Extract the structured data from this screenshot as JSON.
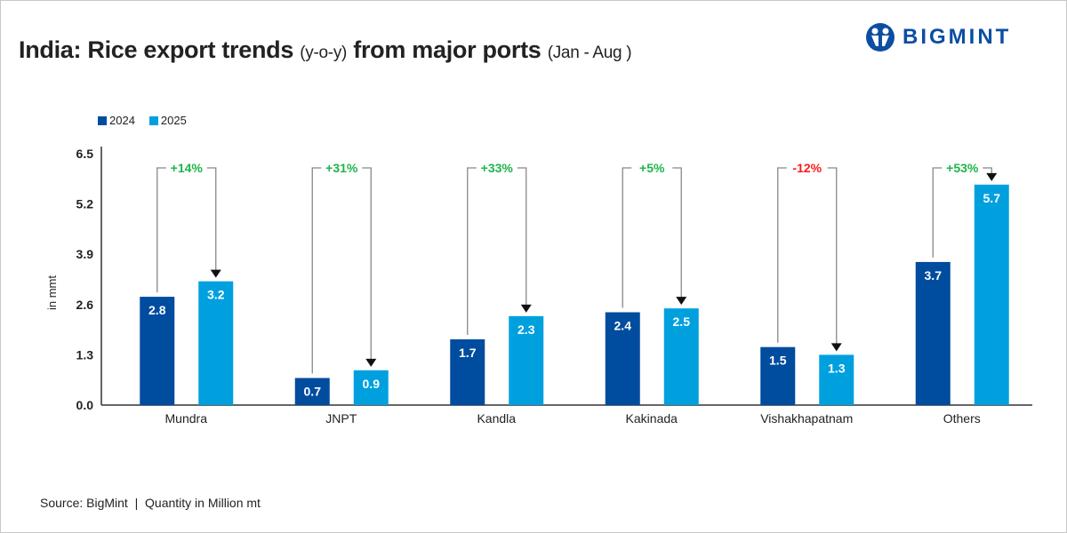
{
  "title": {
    "main1": "India: Rice export trends ",
    "paren1": "(y-o-y)",
    "main2": " from major ports ",
    "paren2": "(Jan - Aug )"
  },
  "logo": {
    "text": "BIGMINT"
  },
  "source": "Source: BigMint  |  Quantity in Million mt",
  "colors": {
    "2024": "#004c9e",
    "2025": "#00a0df",
    "positive": "#1db54a",
    "negative": "#ff1a1a"
  },
  "chart_data": {
    "type": "bar",
    "categories": [
      "Mundra",
      "JNPT",
      "Kandla",
      "Kakinada",
      "Vishakhapatnam",
      "Others"
    ],
    "series": [
      {
        "name": "2024",
        "values": [
          2.8,
          0.7,
          1.7,
          2.4,
          1.5,
          3.7
        ]
      },
      {
        "name": "2025",
        "values": [
          3.2,
          0.9,
          2.3,
          2.5,
          1.3,
          5.7
        ]
      }
    ],
    "yoy_change": [
      "+14%",
      "+31%",
      "+33%",
      "+5%",
      "-12%",
      "+53%"
    ],
    "ylabel": "in mmt",
    "ylim": [
      0,
      6.5
    ],
    "yticks": [
      "0.0",
      "1.3",
      "2.6",
      "3.9",
      "5.2",
      "6.5"
    ],
    "legend": "top-left",
    "grid": false
  }
}
